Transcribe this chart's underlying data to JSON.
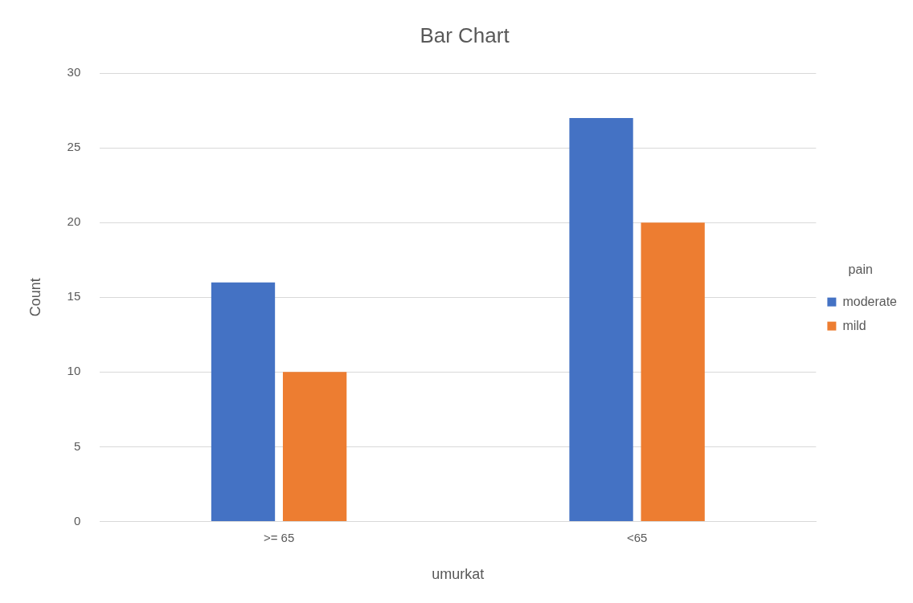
{
  "chart_data": {
    "type": "bar",
    "title": "Bar Chart",
    "xlabel": "umurkat",
    "ylabel": "Count",
    "legend_title": "pain",
    "categories": [
      ">= 65",
      "<65"
    ],
    "series": [
      {
        "name": "moderate",
        "color": "#4472c4",
        "values": [
          16,
          27
        ]
      },
      {
        "name": "mild",
        "color": "#ed7d31",
        "values": [
          10,
          20
        ]
      }
    ],
    "ylim": [
      0,
      30
    ],
    "yticks": [
      0,
      5,
      10,
      15,
      20,
      25,
      30
    ],
    "grid": "y",
    "legend": "right"
  }
}
